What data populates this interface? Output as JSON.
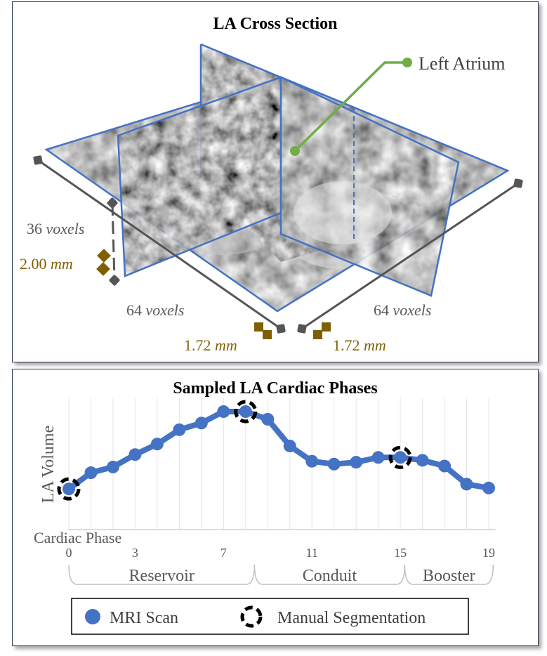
{
  "cross_section": {
    "title": "LA Cross Section",
    "callout_label": "Left Atrium",
    "depth_voxels": "36",
    "depth_mm": "2.00",
    "width_voxels_left": "64",
    "width_voxels_right": "64",
    "spacing_left_mm": "1.72",
    "spacing_right_mm": "1.72",
    "voxels_word": "voxels",
    "mm_word": "mm"
  },
  "chart_data": {
    "type": "line",
    "title": "Sampled LA Cardiac Phases",
    "xlabel": "Cardiac Phase",
    "ylabel": "LA Volume",
    "xlim": [
      0,
      19
    ],
    "ylim": [
      0,
      1
    ],
    "x_ticks": [
      0,
      3,
      7,
      11,
      15,
      19
    ],
    "grid": true,
    "series": [
      {
        "name": "MRI Scan",
        "color": "#4472c4",
        "x": [
          0,
          1,
          2,
          3,
          4,
          5,
          6,
          7,
          8,
          9,
          10,
          11,
          12,
          13,
          14,
          15,
          16,
          17,
          18,
          19
        ],
        "values": [
          0.19,
          0.36,
          0.42,
          0.55,
          0.66,
          0.81,
          0.88,
          1.0,
          1.0,
          0.92,
          0.64,
          0.48,
          0.45,
          0.47,
          0.52,
          0.52,
          0.49,
          0.43,
          0.24,
          0.2
        ]
      }
    ],
    "manual_segmentation_x": [
      0,
      8,
      15
    ],
    "phases": [
      {
        "label": "Reservoir",
        "start": 0,
        "end": 8.4
      },
      {
        "label": "Conduit",
        "start": 8.4,
        "end": 15.2
      },
      {
        "label": "Booster",
        "start": 15.2,
        "end": 19.2
      }
    ],
    "legend": [
      {
        "label": "MRI Scan",
        "marker": "filled-circle",
        "color": "#4472c4"
      },
      {
        "label": "Manual Segmentation",
        "marker": "dashed-ring",
        "color": "#000000"
      }
    ],
    "legend_position": "bottom"
  }
}
